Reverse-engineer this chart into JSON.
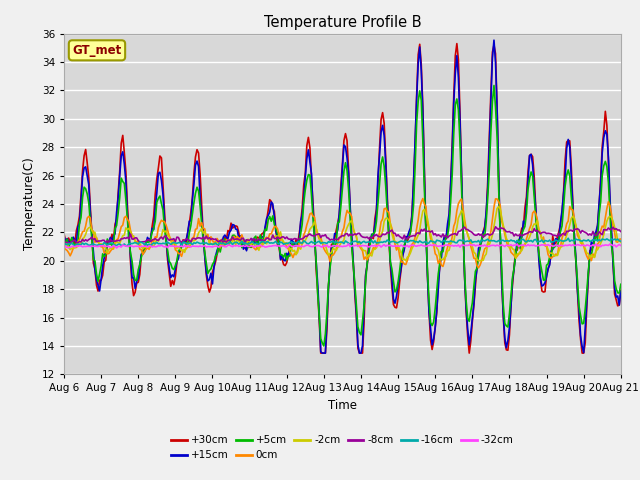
{
  "title": "Temperature Profile B",
  "xlabel": "Time",
  "ylabel": "Temperature(C)",
  "ylim": [
    12,
    36
  ],
  "xtick_labels": [
    "Aug 6",
    "Aug 7",
    "Aug 8",
    "Aug 9",
    "Aug 10",
    "Aug 11",
    "Aug 12",
    "Aug 13",
    "Aug 14",
    "Aug 15",
    "Aug 16",
    "Aug 17",
    "Aug 18",
    "Aug 19",
    "Aug 20",
    "Aug 21"
  ],
  "annotation": "GT_met",
  "bg_color": "#d8d8d8",
  "fig_color": "#f0f0f0",
  "grid_color": "white",
  "series_colors": {
    "+30cm": "#cc0000",
    "+15cm": "#0000cc",
    "+5cm": "#00bb00",
    "0cm": "#ff8800",
    "-2cm": "#cccc00",
    "-8cm": "#990099",
    "-16cm": "#00aaaa",
    "-32cm": "#ff44ff"
  },
  "series_order": [
    "+30cm",
    "+15cm",
    "+5cm",
    "0cm",
    "-2cm",
    "-8cm",
    "-16cm",
    "-32cm"
  ],
  "lw": 1.2,
  "linestyle": "-"
}
